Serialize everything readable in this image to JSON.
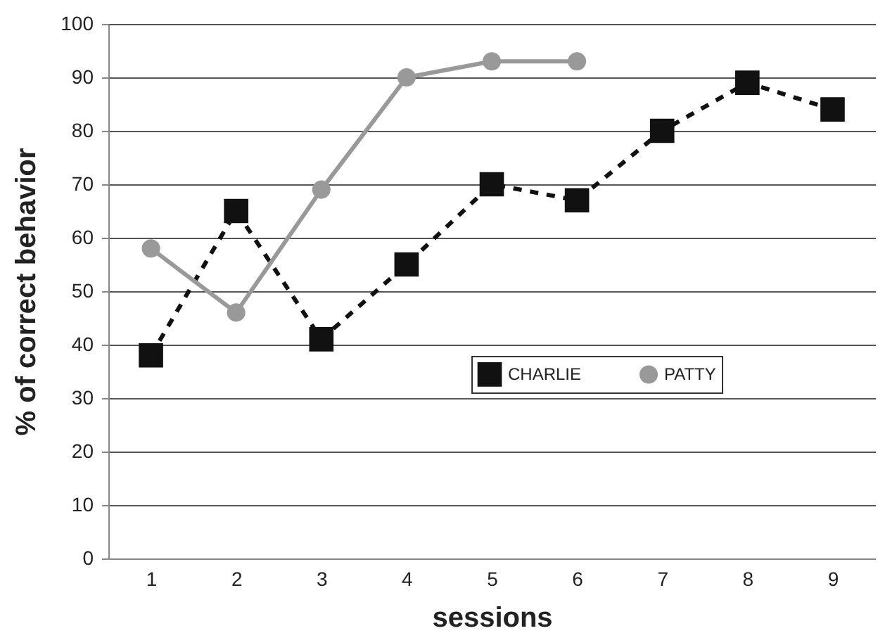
{
  "chart_data": {
    "type": "line",
    "xlabel": "sessions",
    "ylabel": "% of correct behavior",
    "categories": [
      "1",
      "2",
      "3",
      "4",
      "5",
      "6",
      "7",
      "8",
      "9"
    ],
    "series": [
      {
        "name": "CHARLIE",
        "color": "#111111",
        "marker": "square",
        "line_style": "dashed",
        "values": [
          38,
          65,
          41,
          55,
          70,
          67,
          80,
          89,
          84
        ]
      },
      {
        "name": "PATTY",
        "color": "#999999",
        "marker": "circle",
        "line_style": "solid",
        "values": [
          58,
          46,
          69,
          90,
          93,
          93,
          null,
          null,
          null
        ]
      }
    ],
    "ylim": [
      0,
      100
    ],
    "yticks": [
      0,
      10,
      20,
      30,
      40,
      50,
      60,
      70,
      80,
      90,
      100
    ],
    "grid": "y",
    "legend": "right"
  }
}
